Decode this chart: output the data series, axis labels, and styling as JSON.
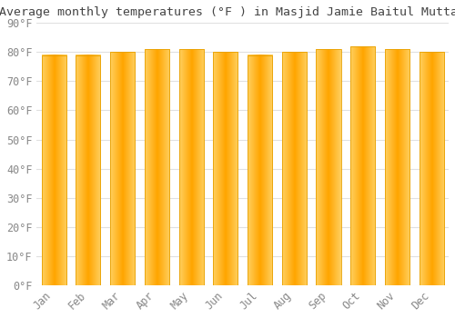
{
  "title": "Average monthly temperatures (°F ) in Masjid Jamie Baitul Muttaqien",
  "months": [
    "Jan",
    "Feb",
    "Mar",
    "Apr",
    "May",
    "Jun",
    "Jul",
    "Aug",
    "Sep",
    "Oct",
    "Nov",
    "Dec"
  ],
  "values": [
    79,
    79,
    80,
    81,
    81,
    80,
    79,
    80,
    81,
    82,
    81,
    80
  ],
  "bar_color_center": "#FFA500",
  "bar_color_edge": "#FFD060",
  "bar_edge_color": "#E8A000",
  "background_color": "#FFFFFF",
  "grid_color": "#E0E0E0",
  "text_color": "#888888",
  "title_color": "#444444",
  "ylim": [
    0,
    90
  ],
  "ytick_step": 10,
  "title_fontsize": 9.5,
  "tick_fontsize": 8.5
}
